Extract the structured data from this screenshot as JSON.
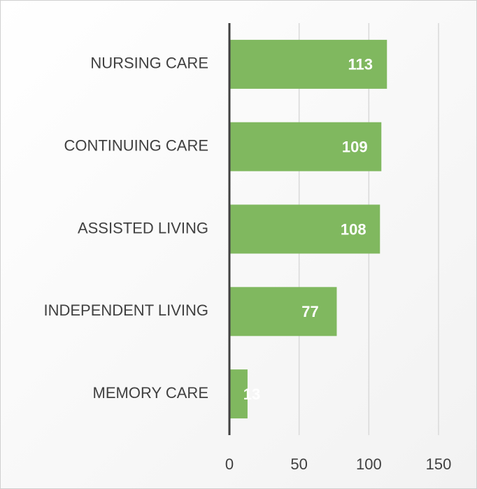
{
  "chart_data": {
    "type": "barh",
    "categories": [
      "NURSING CARE",
      "CONTINUING CARE",
      "ASSISTED LIVING",
      "INDEPENDENT LIVING",
      "MEMORY CARE"
    ],
    "values": [
      113,
      109,
      108,
      77,
      13
    ],
    "color": "#80b85f",
    "xlim": [
      0,
      150
    ],
    "xticks": [
      0,
      50,
      100,
      150
    ],
    "grid": true
  }
}
